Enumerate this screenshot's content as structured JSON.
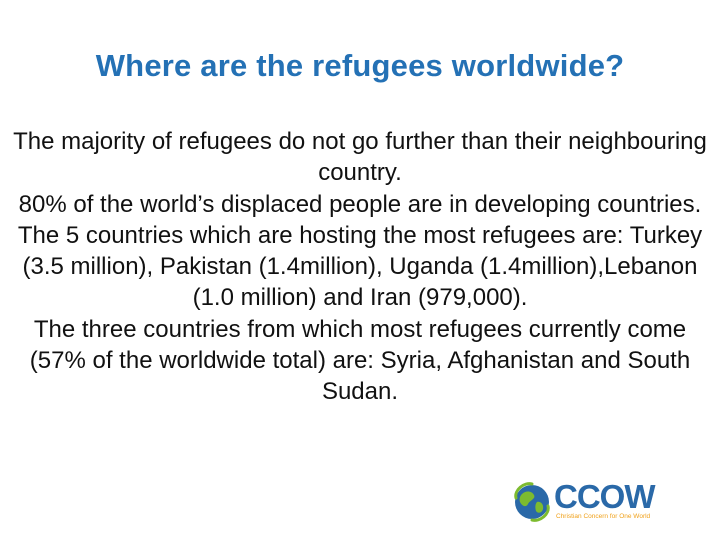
{
  "slide": {
    "title": "Where are the refugees worldwide?",
    "paragraphs": [
      "The majority of refugees do not go further than their neighbouring country.",
      "80% of the world’s displaced people are in developing countries.",
      "The 5 countries which are hosting the most refugees are: Turkey (3.5 million), Pakistan (1.4million), Uganda (1.4million),Lebanon (1.0 million) and Iran (979,000).",
      "The three countries from which most refugees currently come (57% of the worldwide total) are: Syria, Afghanistan and South Sudan."
    ]
  },
  "logo": {
    "wordmark": "CCOW",
    "tagline": "Christian Concern for One World",
    "icon": "globe-icon",
    "colors": {
      "blue": "#2a69a8",
      "green": "#7dbb2f",
      "orange": "#f0a11b"
    }
  },
  "colors": {
    "title": "#2471b5",
    "text": "#111111",
    "background": "#ffffff"
  }
}
